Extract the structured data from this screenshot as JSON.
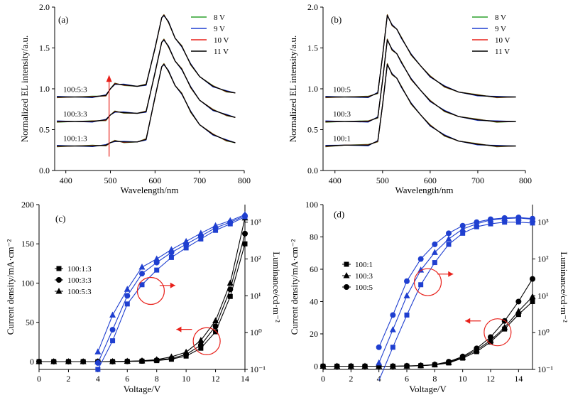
{
  "chart_data": [
    {
      "panel": "(a)",
      "type": "line",
      "xlabel": "Wavelength/nm",
      "ylabel": "Normalized EL intensity/a.u.",
      "xlim": [
        375,
        800
      ],
      "ylim": [
        0.0,
        2.0
      ],
      "xticks": [
        "400",
        "500",
        "600",
        "700",
        "800"
      ],
      "yticks": [
        "0.0",
        "0.5",
        "1.0",
        "1.5",
        "2.0"
      ],
      "legend": [
        "8 V",
        "9 V",
        "10 V",
        "11 V"
      ],
      "legend_colors": [
        "#2ca02c",
        "#1f3fd0",
        "#e8201a",
        "#000000"
      ],
      "curve_labels": [
        "100:5:3",
        "100:3:3",
        "100:1:3"
      ],
      "x": [
        380,
        420,
        460,
        490,
        500,
        510,
        530,
        560,
        580,
        600,
        615,
        620,
        630,
        645,
        660,
        680,
        700,
        730,
        760,
        780
      ],
      "series": [
        {
          "name": "100:5:3",
          "values": [
            0.9,
            0.9,
            0.9,
            0.92,
            1.0,
            1.06,
            1.05,
            1.03,
            1.05,
            1.5,
            1.87,
            1.9,
            1.82,
            1.62,
            1.52,
            1.3,
            1.15,
            1.03,
            0.97,
            0.95
          ]
        },
        {
          "name": "100:3:3",
          "values": [
            0.6,
            0.6,
            0.6,
            0.62,
            0.68,
            0.72,
            0.71,
            0.7,
            0.72,
            1.2,
            1.57,
            1.6,
            1.52,
            1.34,
            1.24,
            1.02,
            0.86,
            0.74,
            0.68,
            0.65
          ]
        },
        {
          "name": "100:1:3",
          "values": [
            0.3,
            0.3,
            0.3,
            0.31,
            0.34,
            0.36,
            0.35,
            0.35,
            0.38,
            0.9,
            1.27,
            1.3,
            1.22,
            1.04,
            0.94,
            0.72,
            0.56,
            0.44,
            0.37,
            0.34
          ]
        }
      ]
    },
    {
      "panel": "(b)",
      "type": "line",
      "xlabel": "Wavelength/nm",
      "ylabel": "Normalized EL intensity/a.u.",
      "xlim": [
        375,
        800
      ],
      "ylim": [
        0.0,
        2.0
      ],
      "xticks": [
        "400",
        "500",
        "600",
        "700",
        "800"
      ],
      "yticks": [
        "0.0",
        "0.5",
        "1.0",
        "1.5",
        "2.0"
      ],
      "legend": [
        "8 V",
        "9 V",
        "10 V",
        "11 V"
      ],
      "legend_colors": [
        "#2ca02c",
        "#1f3fd0",
        "#e8201a",
        "#000000"
      ],
      "curve_labels": [
        "100:5",
        "100:3",
        "100:1"
      ],
      "x": [
        380,
        420,
        470,
        490,
        500,
        510,
        520,
        530,
        540,
        560,
        580,
        600,
        630,
        660,
        700,
        740,
        780
      ],
      "series": [
        {
          "name": "100:5",
          "values": [
            0.9,
            0.9,
            0.9,
            0.95,
            1.4,
            1.9,
            1.78,
            1.73,
            1.62,
            1.42,
            1.28,
            1.15,
            1.03,
            0.96,
            0.92,
            0.9,
            0.9
          ]
        },
        {
          "name": "100:3",
          "values": [
            0.6,
            0.6,
            0.6,
            0.65,
            1.1,
            1.6,
            1.48,
            1.43,
            1.32,
            1.12,
            0.98,
            0.85,
            0.73,
            0.66,
            0.62,
            0.6,
            0.6
          ]
        },
        {
          "name": "100:1",
          "values": [
            0.3,
            0.31,
            0.31,
            0.36,
            0.8,
            1.3,
            1.18,
            1.13,
            1.02,
            0.82,
            0.68,
            0.55,
            0.43,
            0.36,
            0.32,
            0.3,
            0.3
          ]
        }
      ]
    },
    {
      "panel": "(c)",
      "type": "line",
      "xlabel": "Voltage/V",
      "ylabel": "Current density/mA·cm⁻²",
      "y2label": "Luminance/cd·m⁻²",
      "xlim": [
        0,
        14
      ],
      "ylim": [
        -10,
        200
      ],
      "y2scale": "log",
      "y2lim": [
        0.1,
        3000
      ],
      "xticks": [
        "0",
        "2",
        "4",
        "6",
        "8",
        "10",
        "12",
        "14"
      ],
      "yticks": [
        "0",
        "50",
        "100",
        "150",
        "200"
      ],
      "y2ticks": [
        "10⁻¹",
        "10⁰",
        "10¹",
        "10²",
        "10³"
      ],
      "legend": [
        "100:1:3",
        "100:3:3",
        "100:5:3"
      ],
      "x": [
        0,
        1,
        2,
        3,
        4,
        5,
        6,
        7,
        8,
        9,
        10,
        11,
        12,
        13,
        14
      ],
      "series": [
        {
          "name": "100:1:3",
          "marker": "square",
          "axis": "current",
          "values": [
            0,
            0,
            0,
            0,
            0,
            0,
            0.2,
            0.5,
            1.2,
            3,
            7,
            17,
            38,
            83,
            150
          ]
        },
        {
          "name": "100:3:3",
          "marker": "circle",
          "axis": "current",
          "values": [
            0,
            0,
            0,
            0,
            0,
            0,
            0.3,
            0.8,
            1.8,
            4,
            9,
            21,
            45,
            92,
            163
          ]
        },
        {
          "name": "100:5:3",
          "marker": "triangle",
          "axis": "current",
          "values": [
            0,
            0,
            0,
            0,
            0,
            0.1,
            0.4,
            1,
            2.5,
            6,
            12,
            27,
            52,
            100,
            183
          ]
        },
        {
          "name": "100:1:3",
          "marker": "square",
          "axis": "luminance",
          "x": [
            4,
            5,
            6,
            7,
            8,
            9,
            10,
            11,
            12,
            13,
            14
          ],
          "values": [
            0.1,
            0.6,
            6,
            20,
            50,
            110,
            200,
            350,
            600,
            900,
            1400
          ]
        },
        {
          "name": "100:3:3",
          "marker": "circle",
          "axis": "luminance",
          "x": [
            4,
            5,
            6,
            7,
            8,
            9,
            10,
            11,
            12,
            13,
            14
          ],
          "values": [
            0.15,
            1.2,
            10,
            40,
            80,
            150,
            250,
            420,
            700,
            1000,
            1500
          ]
        },
        {
          "name": "100:5:3",
          "marker": "triangle",
          "axis": "luminance",
          "x": [
            4,
            5,
            6,
            7,
            8,
            9,
            10,
            11,
            12,
            13,
            14
          ],
          "values": [
            0.3,
            3,
            15,
            60,
            100,
            180,
            300,
            500,
            800,
            1100,
            1600
          ]
        }
      ]
    },
    {
      "panel": "(d)",
      "type": "line",
      "xlabel": "Voltage/V",
      "ylabel": "Current density/mA·cm⁻²",
      "y2label": "Luminance/cd·m⁻²",
      "xlim": [
        0,
        15
      ],
      "ylim": [
        -2,
        100
      ],
      "y2scale": "log",
      "y2lim": [
        0.1,
        3000
      ],
      "xticks": [
        "0",
        "2",
        "4",
        "6",
        "8",
        "10",
        "12",
        "14"
      ],
      "yticks": [
        "0",
        "20",
        "40",
        "60",
        "80",
        "100"
      ],
      "y2ticks": [
        "10⁻¹",
        "10⁰",
        "10¹",
        "10²",
        "10³"
      ],
      "legend": [
        "100:1",
        "100:3",
        "100:5"
      ],
      "x": [
        0,
        1,
        2,
        3,
        4,
        5,
        6,
        7,
        8,
        9,
        10,
        11,
        12,
        13,
        14,
        15
      ],
      "series": [
        {
          "name": "100:1",
          "marker": "square",
          "axis": "current",
          "values": [
            0,
            0,
            0,
            0,
            0,
            0,
            0.1,
            0.3,
            0.8,
            2,
            5,
            9,
            15,
            23,
            32,
            40
          ]
        },
        {
          "name": "100:3",
          "marker": "triangle",
          "axis": "current",
          "values": [
            0,
            0,
            0,
            0,
            0,
            0,
            0.1,
            0.3,
            0.9,
            2.3,
            5.5,
            10,
            16,
            24,
            34,
            43
          ]
        },
        {
          "name": "100:5",
          "marker": "circle",
          "axis": "current",
          "values": [
            0,
            0,
            0,
            0,
            0,
            0,
            0.2,
            0.4,
            1,
            2.8,
            6,
            11,
            18,
            28,
            40,
            54
          ]
        },
        {
          "name": "100:1",
          "marker": "square",
          "axis": "luminance",
          "x": [
            4,
            5,
            6,
            7,
            8,
            9,
            10,
            11,
            12,
            13,
            14,
            15
          ],
          "values": [
            0.05,
            0.4,
            3,
            20,
            80,
            250,
            500,
            750,
            900,
            1000,
            1000,
            950
          ]
        },
        {
          "name": "100:3",
          "marker": "triangle",
          "axis": "luminance",
          "x": [
            4,
            5,
            6,
            7,
            8,
            9,
            10,
            11,
            12,
            13,
            14,
            15
          ],
          "values": [
            0.15,
            1.2,
            10,
            50,
            150,
            350,
            650,
            900,
            1150,
            1250,
            1300,
            1200
          ]
        },
        {
          "name": "100:5",
          "marker": "circle",
          "axis": "luminance",
          "x": [
            4,
            5,
            6,
            7,
            8,
            9,
            10,
            11,
            12,
            13,
            14,
            15
          ],
          "values": [
            0.4,
            3,
            25,
            100,
            250,
            500,
            800,
            1000,
            1200,
            1300,
            1350,
            1250
          ]
        }
      ]
    }
  ]
}
